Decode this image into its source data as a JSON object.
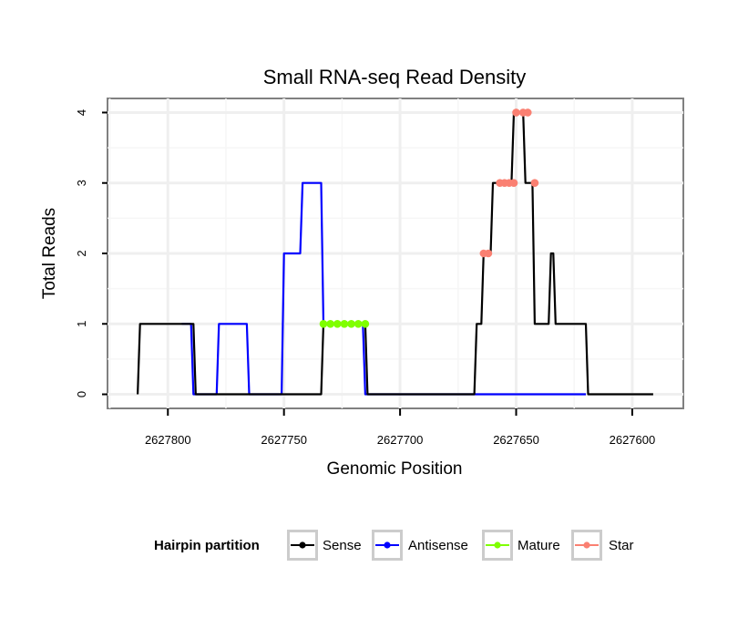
{
  "chart_data": {
    "type": "line",
    "title": "Small RNA-seq Read Density",
    "xlabel": "Genomic Position",
    "ylabel": "Total Reads",
    "x_reversed": true,
    "xlim": [
      2627826,
      2627578
    ],
    "ylim": [
      -0.2,
      4.2
    ],
    "x_ticks": [
      2627800,
      2627750,
      2627700,
      2627650,
      2627600
    ],
    "x_tick_labels": [
      "2627800",
      "2627750",
      "2627700",
      "2627650",
      "2627600"
    ],
    "y_ticks": [
      0,
      1,
      2,
      3,
      4
    ],
    "y_tick_labels": [
      "0",
      "1",
      "2",
      "3",
      "4"
    ],
    "grid": true,
    "legend": {
      "title": "Hairpin partition",
      "position": "bottom",
      "entries": [
        {
          "label": "Sense",
          "color": "#000000"
        },
        {
          "label": "Antisense",
          "color": "#0000ff"
        },
        {
          "label": "Mature",
          "color": "#7fff00"
        },
        {
          "label": "Star",
          "color": "#fa8072"
        }
      ]
    },
    "series": [
      {
        "name": "Sense",
        "color": "#000000",
        "style": "line",
        "x": [
          2627813,
          2627812,
          2627789,
          2627788,
          2627734,
          2627733,
          2627715,
          2627714,
          2627668,
          2627667,
          2627665,
          2627664,
          2627661,
          2627660,
          2627652,
          2627651,
          2627647,
          2627646,
          2627643,
          2627642,
          2627636,
          2627635,
          2627634,
          2627633,
          2627620,
          2627619,
          2627591
        ],
        "y": [
          0,
          1,
          1,
          0,
          0,
          1,
          1,
          0,
          0,
          1,
          1,
          2,
          2,
          3,
          3,
          4,
          4,
          3,
          3,
          1,
          1,
          2,
          2,
          1,
          1,
          0,
          0
        ]
      },
      {
        "name": "Antisense",
        "color": "#0000ff",
        "style": "line",
        "x": [
          2627794,
          2627790,
          2627789,
          2627779,
          2627778,
          2627766,
          2627765,
          2627751,
          2627750,
          2627743,
          2627742,
          2627734,
          2627733,
          2627716,
          2627715,
          2627668,
          2627620
        ],
        "y": [
          1,
          1,
          0,
          0,
          1,
          1,
          0,
          0,
          2,
          2,
          3,
          3,
          1,
          1,
          0,
          0,
          0
        ]
      },
      {
        "name": "Mature",
        "color": "#7fff00",
        "style": "points",
        "x": [
          2627733,
          2627730,
          2627727,
          2627724,
          2627721,
          2627718,
          2627715
        ],
        "y": [
          1,
          1,
          1,
          1,
          1,
          1,
          1
        ]
      },
      {
        "name": "Star",
        "color": "#fa8072",
        "style": "points",
        "x": [
          2627664,
          2627662,
          2627657,
          2627655,
          2627653,
          2627651,
          2627650,
          2627647,
          2627645,
          2627642
        ],
        "y": [
          2,
          2,
          3,
          3,
          3,
          3,
          4,
          4,
          4,
          3
        ]
      }
    ]
  }
}
